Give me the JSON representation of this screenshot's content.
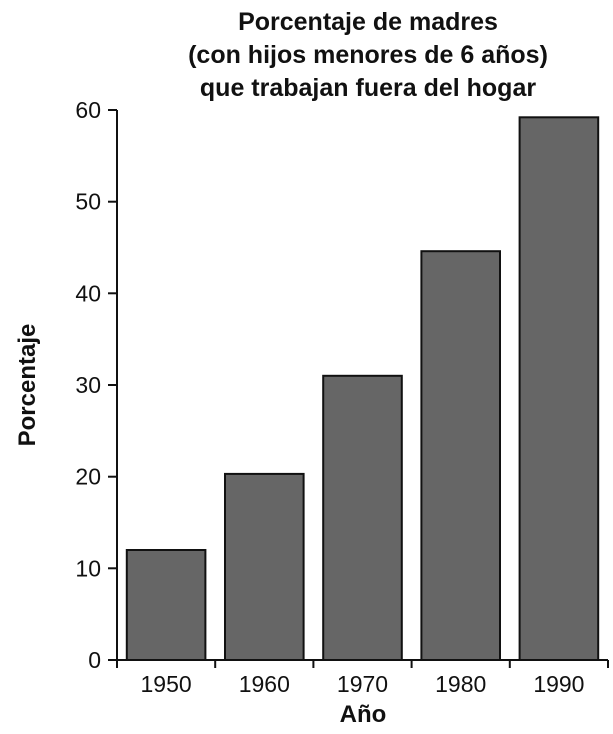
{
  "chart_data": {
    "type": "bar",
    "title_lines": [
      "Porcentaje de madres",
      "(con hijos menores de 6 años)",
      "que trabajan fuera del hogar"
    ],
    "xlabel": "Año",
    "ylabel": "Porcentaje",
    "categories": [
      "1950",
      "1960",
      "1970",
      "1980",
      "1990"
    ],
    "values": [
      12,
      20.3,
      31,
      44.6,
      59.2
    ],
    "ylim": [
      0,
      60
    ],
    "yticks": [
      "0",
      "10",
      "20",
      "30",
      "40",
      "50",
      "60"
    ],
    "grid": false,
    "legend": "none",
    "bar_color": "#666666",
    "bar_edge_color": "#111111"
  }
}
